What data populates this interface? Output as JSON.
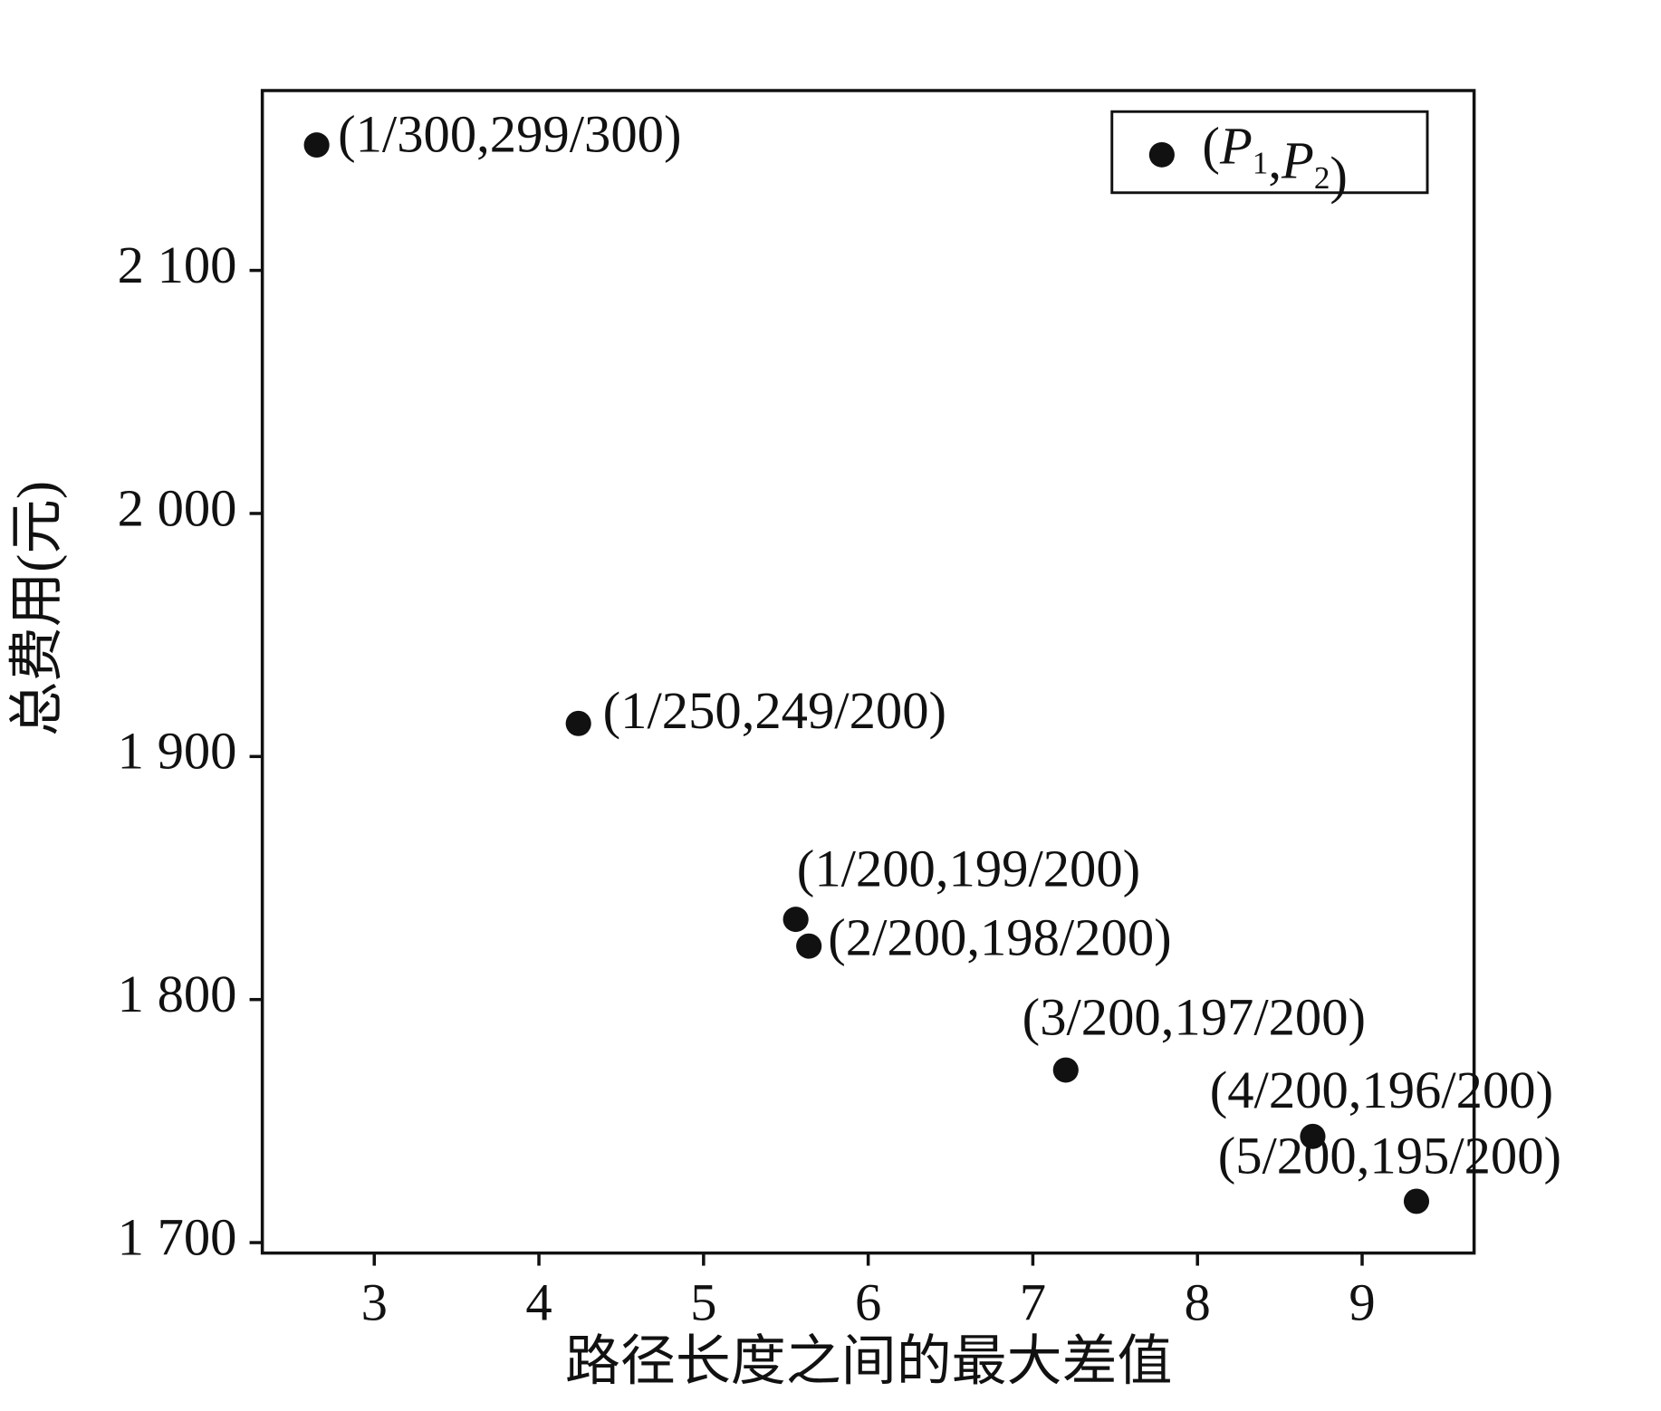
{
  "chart_data": {
    "type": "scatter",
    "x_label": "路径长度之间的最大差值",
    "y_label": "总费用(元)",
    "xlim": [
      2.32,
      9.68
    ],
    "ylim": [
      1695.7,
      2174
    ],
    "xticks": [
      3,
      4,
      5,
      6,
      7,
      8,
      9
    ],
    "yticks": [
      {
        "value": 1700,
        "label": "1 700"
      },
      {
        "value": 1800,
        "label": "1 800"
      },
      {
        "value": 1900,
        "label": "1 900"
      },
      {
        "value": 2000,
        "label": "2 000"
      },
      {
        "value": 2100,
        "label": "2 100"
      }
    ],
    "legend": "upper right",
    "series": [
      {
        "name": "(P1,P2)",
        "color": "#111111",
        "x": [
          2.65,
          4.24,
          5.56,
          5.64,
          7.2,
          8.7,
          9.33
        ],
        "values": [
          2151.6,
          1913.6,
          1833,
          1822,
          1771,
          1743.7,
          1717
        ],
        "point_labels": [
          "(1/300,299/300)",
          "(1/250,249/200)",
          "(1/200,199/200)",
          "(2/200,198/200)",
          "(3/200,197/200)",
          "(4/200,196/200)",
          "(5/200,195/200)"
        ]
      }
    ]
  }
}
